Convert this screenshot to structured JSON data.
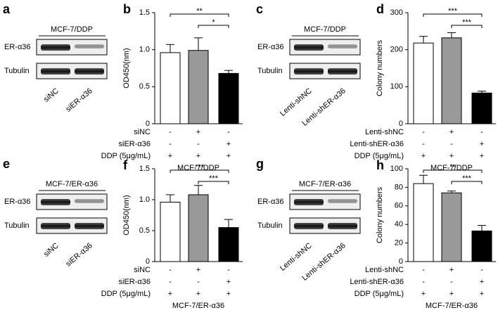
{
  "blots": [
    {
      "label": "a",
      "title": "MCF-7/DDP",
      "rows": [
        "ER-α36",
        "Tubulin"
      ],
      "lanes": [
        "siNC",
        "siER-α36"
      ]
    },
    {
      "label": "c",
      "title": "MCF-7/DDP",
      "rows": [
        "ER-α36",
        "Tubulin"
      ],
      "lanes": [
        "Lenti-shNC",
        "Lenti-shER-α36"
      ]
    },
    {
      "label": "e",
      "title": "MCF-7/ER-α36",
      "rows": [
        "ER-α36",
        "Tubulin"
      ],
      "lanes": [
        "siNC",
        "siER-α36"
      ]
    },
    {
      "label": "g",
      "title": "MCF-7/ER-α36",
      "rows": [
        "ER-α36",
        "Tubulin"
      ],
      "lanes": [
        "Lenti-shNC",
        "Lenti-shER-α36"
      ]
    }
  ],
  "chart_data": [
    {
      "type": "bar",
      "label": "b",
      "y_label": "OD450(nm)",
      "x_label": "MCF-7/DDP",
      "values": [
        0.96,
        0.99,
        0.68
      ],
      "errors": [
        0.11,
        0.17,
        0.04
      ],
      "colors": [
        "#ffffff",
        "#999999",
        "#000000"
      ],
      "ylim": [
        0,
        1.5
      ],
      "yticks": [
        0,
        0.5,
        {
          "value": 1,
          "label": "1.0"
        },
        1.5
      ],
      "significance": [
        "**",
        "*"
      ],
      "treatments": [
        {
          "name": "siNC",
          "signs": [
            "-",
            "+",
            "-"
          ]
        },
        {
          "name": "siER-α36",
          "signs": [
            "-",
            "-",
            "+"
          ]
        },
        {
          "name": "DDP (5μg/mL)",
          "signs": [
            "+",
            "+",
            "+"
          ]
        }
      ]
    },
    {
      "type": "bar",
      "label": "d",
      "y_label": "Colony numbers",
      "x_label": "MCF-7/DDP",
      "values": [
        218,
        232,
        83
      ],
      "errors": [
        18,
        14,
        5
      ],
      "colors": [
        "#ffffff",
        "#999999",
        "#000000"
      ],
      "ylim": [
        0,
        300
      ],
      "yticks": [
        0,
        100,
        200,
        300
      ],
      "significance": [
        "***",
        "***"
      ],
      "treatments": [
        {
          "name": "Lenti-shNC",
          "signs": [
            "-",
            "+",
            "-"
          ]
        },
        {
          "name": "Lenti-shER-α36",
          "signs": [
            "-",
            "-",
            "+"
          ]
        },
        {
          "name": "DDP (5μg/mL)",
          "signs": [
            "+",
            "+",
            "+"
          ]
        }
      ]
    },
    {
      "type": "bar",
      "label": "f",
      "y_label": "OD450(nm)",
      "x_label": "MCF-7/ER-α36",
      "values": [
        0.96,
        1.08,
        0.55
      ],
      "errors": [
        0.12,
        0.15,
        0.13
      ],
      "colors": [
        "#ffffff",
        "#999999",
        "#000000"
      ],
      "ylim": [
        0,
        1.5
      ],
      "yticks": [
        0,
        0.5,
        {
          "value": 1,
          "label": "1.0"
        },
        1.5
      ],
      "significance": [
        "***",
        "***"
      ],
      "treatments": [
        {
          "name": "siNC",
          "signs": [
            "-",
            "+",
            "-"
          ]
        },
        {
          "name": "siER-α36",
          "signs": [
            "-",
            "-",
            "+"
          ]
        },
        {
          "name": "DDP (5μg/mL)",
          "signs": [
            "+",
            "+",
            "+"
          ]
        }
      ]
    },
    {
      "type": "bar",
      "label": "h",
      "y_label": "Colony numbers",
      "x_label": "MCF-7/ER-α36",
      "values": [
        84,
        74,
        33
      ],
      "errors": [
        9,
        2,
        6
      ],
      "colors": [
        "#ffffff",
        "#999999",
        "#000000"
      ],
      "ylim": [
        0,
        100
      ],
      "yticks": [
        0,
        20,
        40,
        60,
        80,
        100
      ],
      "significance": [
        "**",
        "***"
      ],
      "treatments": [
        {
          "name": "Lenti-shNC",
          "signs": [
            "-",
            "+",
            "-"
          ]
        },
        {
          "name": "Lenti-shER-α36",
          "signs": [
            "-",
            "-",
            "+"
          ]
        },
        {
          "name": "DDP (5μg/mL)",
          "signs": [
            "+",
            "+",
            "+"
          ]
        }
      ]
    }
  ]
}
